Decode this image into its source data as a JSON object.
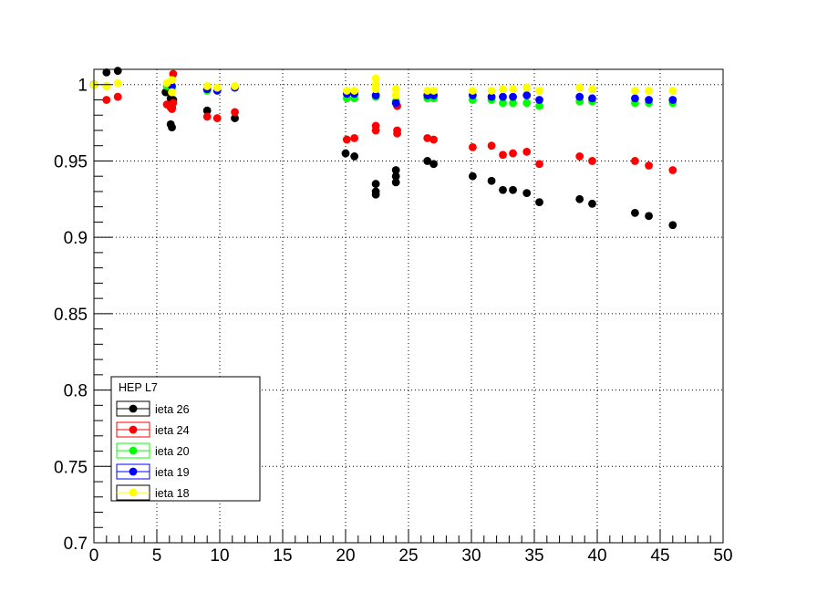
{
  "chart_data": {
    "type": "scatter",
    "title": "",
    "xlabel": "",
    "ylabel": "",
    "xlim": [
      0,
      50
    ],
    "ylim": [
      0.7,
      1.01
    ],
    "x_ticks": [
      0,
      5,
      10,
      15,
      20,
      25,
      30,
      35,
      40,
      45,
      50
    ],
    "y_ticks": [
      0.7,
      0.75,
      0.8,
      0.85,
      0.9,
      0.95,
      1
    ],
    "x_tick_labels": [
      "0",
      "5",
      "10",
      "15",
      "20",
      "25",
      "30",
      "35",
      "40",
      "45",
      "50"
    ],
    "y_tick_labels": [
      "0.7",
      "0.75",
      "0.8",
      "0.85",
      "0.9",
      "0.95",
      "1"
    ],
    "grid": true,
    "legend": {
      "title": "HEP L7",
      "position": "bottom-left"
    },
    "series": [
      {
        "name": "ieta 26",
        "color": "#000000",
        "points": [
          [
            0,
            1.0
          ],
          [
            1,
            1.008
          ],
          [
            1.9,
            1.009
          ],
          [
            5.7,
            0.995
          ],
          [
            6.0,
            0.996
          ],
          [
            6.1,
            0.991
          ],
          [
            6.1,
            0.974
          ],
          [
            6.2,
            0.972
          ],
          [
            6.2,
            0.985
          ],
          [
            6.3,
            0.99
          ],
          [
            9.0,
            0.983
          ],
          [
            11.2,
            0.978
          ],
          [
            20.0,
            0.955
          ],
          [
            20.7,
            0.953
          ],
          [
            22.4,
            0.935
          ],
          [
            22.4,
            0.93
          ],
          [
            22.4,
            0.928
          ],
          [
            24.0,
            0.944
          ],
          [
            24.0,
            0.94
          ],
          [
            24.0,
            0.936
          ],
          [
            26.5,
            0.95
          ],
          [
            27.0,
            0.948
          ],
          [
            30.1,
            0.94
          ],
          [
            31.6,
            0.937
          ],
          [
            32.5,
            0.931
          ],
          [
            33.3,
            0.931
          ],
          [
            34.4,
            0.929
          ],
          [
            35.4,
            0.923
          ],
          [
            38.6,
            0.925
          ],
          [
            39.6,
            0.922
          ],
          [
            43.0,
            0.916
          ],
          [
            44.1,
            0.914
          ],
          [
            46.0,
            0.908
          ]
        ]
      },
      {
        "name": "ieta 24",
        "color": "#ff0000",
        "points": [
          [
            1.0,
            0.99
          ],
          [
            1.9,
            0.992
          ],
          [
            5.8,
            0.987
          ],
          [
            6.1,
            0.985
          ],
          [
            6.2,
            0.984
          ],
          [
            6.3,
            1.007
          ],
          [
            6.3,
            0.988
          ],
          [
            9.0,
            0.979
          ],
          [
            9.8,
            0.978
          ],
          [
            11.2,
            0.982
          ],
          [
            20.1,
            0.964
          ],
          [
            20.7,
            0.965
          ],
          [
            22.4,
            0.973
          ],
          [
            22.4,
            0.97
          ],
          [
            24.1,
            0.97
          ],
          [
            24.1,
            0.968
          ],
          [
            24.1,
            0.986
          ],
          [
            26.5,
            0.965
          ],
          [
            27.0,
            0.964
          ],
          [
            30.1,
            0.959
          ],
          [
            31.6,
            0.96
          ],
          [
            32.5,
            0.954
          ],
          [
            33.3,
            0.955
          ],
          [
            34.4,
            0.956
          ],
          [
            35.4,
            0.948
          ],
          [
            38.6,
            0.953
          ],
          [
            39.6,
            0.95
          ],
          [
            43.0,
            0.95
          ],
          [
            44.1,
            0.947
          ],
          [
            46.0,
            0.944
          ]
        ]
      },
      {
        "name": "ieta 20",
        "color": "#00ff00",
        "points": [
          [
            0,
            1.0
          ],
          [
            1.0,
            0.999
          ],
          [
            5.8,
            0.999
          ],
          [
            6.2,
            0.998
          ],
          [
            9.0,
            0.996
          ],
          [
            9.8,
            0.997
          ],
          [
            20.1,
            0.991
          ],
          [
            20.7,
            0.991
          ],
          [
            22.4,
            0.992
          ],
          [
            24.0,
            0.989
          ],
          [
            26.5,
            0.991
          ],
          [
            27.0,
            0.991
          ],
          [
            30.1,
            0.99
          ],
          [
            31.6,
            0.99
          ],
          [
            32.5,
            0.988
          ],
          [
            33.3,
            0.988
          ],
          [
            34.4,
            0.988
          ],
          [
            35.4,
            0.986
          ],
          [
            38.6,
            0.989
          ],
          [
            39.6,
            0.989
          ],
          [
            43.0,
            0.988
          ],
          [
            44.1,
            0.988
          ],
          [
            46.0,
            0.988
          ]
        ]
      },
      {
        "name": "ieta 19",
        "color": "#0000ff",
        "points": [
          [
            0,
            1.0
          ],
          [
            6.2,
            0.999
          ],
          [
            9.0,
            0.997
          ],
          [
            9.8,
            0.996
          ],
          [
            11.2,
            0.998
          ],
          [
            20.1,
            0.994
          ],
          [
            20.7,
            0.994
          ],
          [
            22.4,
            0.993
          ],
          [
            24.0,
            0.988
          ],
          [
            26.5,
            0.993
          ],
          [
            27.0,
            0.993
          ],
          [
            30.1,
            0.993
          ],
          [
            31.6,
            0.992
          ],
          [
            32.5,
            0.992
          ],
          [
            33.3,
            0.992
          ],
          [
            34.4,
            0.993
          ],
          [
            35.4,
            0.99
          ],
          [
            38.6,
            0.992
          ],
          [
            39.6,
            0.991
          ],
          [
            43.0,
            0.991
          ],
          [
            44.1,
            0.99
          ],
          [
            46.0,
            0.99
          ]
        ]
      },
      {
        "name": "ieta 18",
        "color": "#ffff00",
        "points": [
          [
            0,
            1.0
          ],
          [
            1.0,
            0.999
          ],
          [
            1.9,
            1.001
          ],
          [
            5.8,
            1.001
          ],
          [
            6.2,
            1.003
          ],
          [
            6.2,
            0.995
          ],
          [
            9.0,
            0.999
          ],
          [
            9.8,
            0.998
          ],
          [
            11.2,
            0.999
          ],
          [
            20.1,
            0.996
          ],
          [
            20.7,
            0.996
          ],
          [
            22.4,
            1.004
          ],
          [
            22.4,
            1.0
          ],
          [
            22.4,
            0.997
          ],
          [
            24.0,
            0.997
          ],
          [
            24.0,
            0.993
          ],
          [
            26.5,
            0.996
          ],
          [
            27.0,
            0.996
          ],
          [
            30.1,
            0.996
          ],
          [
            31.6,
            0.996
          ],
          [
            32.5,
            0.997
          ],
          [
            33.3,
            0.997
          ],
          [
            34.4,
            0.998
          ],
          [
            35.4,
            0.996
          ],
          [
            38.6,
            0.998
          ],
          [
            39.6,
            0.997
          ],
          [
            43.0,
            0.996
          ],
          [
            44.1,
            0.996
          ],
          [
            46.0,
            0.996
          ]
        ]
      }
    ]
  }
}
